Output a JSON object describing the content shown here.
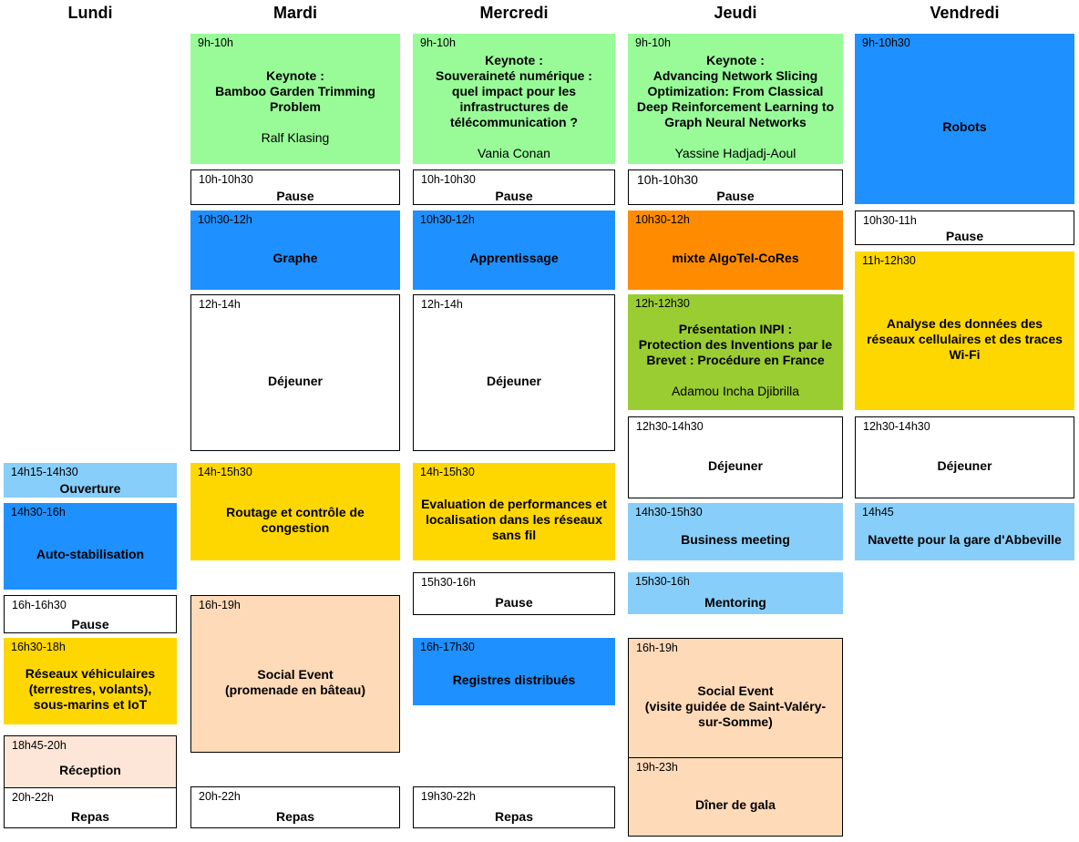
{
  "days": [
    "Lundi",
    "Mardi",
    "Mercredi",
    "Jeudi",
    "Vendredi"
  ],
  "events": {
    "lun_ouverture": {
      "time": "14h15-14h30",
      "title": "Ouverture"
    },
    "lun_autostab": {
      "time": "14h30-16h",
      "title": "Auto-stabilisation"
    },
    "lun_pause": {
      "time": "16h-16h30",
      "title": "Pause"
    },
    "lun_reseaux": {
      "time": "16h30-18h",
      "title": "Réseaux véhiculaires\n(terrestres, volants),\nsous-marins et IoT"
    },
    "lun_reception": {
      "time": "18h45-20h",
      "title": "Réception"
    },
    "lun_repas": {
      "time": "20h-22h",
      "title": "Repas"
    },
    "mar_keynote": {
      "time": "9h-10h",
      "title": "Keynote :\nBamboo Garden Trimming\nProblem",
      "speaker": "Ralf Klasing"
    },
    "mar_pause": {
      "time": "10h-10h30",
      "title": "Pause"
    },
    "mar_graphe": {
      "time": "10h30-12h",
      "title": "Graphe"
    },
    "mar_dej": {
      "time": "12h-14h",
      "title": "Déjeuner"
    },
    "mar_routage": {
      "time": "14h-15h30",
      "title": "Routage et contrôle de\ncongestion"
    },
    "mar_social": {
      "time": "16h-19h",
      "title": "Social Event\n(promenade en bâteau)"
    },
    "mar_repas": {
      "time": "20h-22h",
      "title": "Repas"
    },
    "mer_keynote": {
      "time": "9h-10h",
      "title": "Keynote :\nSouveraineté numérique :\nquel impact pour les\ninfrastructures de\ntélécommunication ?",
      "speaker": "Vania Conan"
    },
    "mer_pause": {
      "time": "10h-10h30",
      "title": "Pause"
    },
    "mer_apprentissage": {
      "time": "10h30-12h",
      "title": "Apprentissage"
    },
    "mer_dej": {
      "time": "12h-14h",
      "title": "Déjeuner"
    },
    "mer_eval": {
      "time": "14h-15h30",
      "title": "Evaluation de performances et\nlocalisation dans les réseaux\nsans fil"
    },
    "mer_pause2": {
      "time": "15h30-16h",
      "title": "Pause"
    },
    "mer_registres": {
      "time": "16h-17h30",
      "title": "Registres distribués"
    },
    "mer_repas": {
      "time": "19h30-22h",
      "title": "Repas"
    },
    "jeu_keynote": {
      "time": "9h-10h",
      "title": "Keynote :\nAdvancing Network Slicing\nOptimization: From Classical\nDeep Reinforcement Learning to\nGraph Neural Networks",
      "speaker": "Yassine Hadjadj-Aoul"
    },
    "jeu_pause": {
      "time": "10h-10h30",
      "title": "Pause"
    },
    "jeu_mixte": {
      "time": "10h30-12h",
      "title": "mixte AlgoTel-CoRes"
    },
    "jeu_inpi": {
      "time": "12h-12h30",
      "title": "Présentation INPI :\nProtection des Inventions par le\nBrevet : Procédure en France",
      "speaker": "Adamou Incha Djibrilla"
    },
    "jeu_dej": {
      "time": "12h30-14h30",
      "title": "Déjeuner"
    },
    "jeu_business": {
      "time": "14h30-15h30",
      "title": "Business meeting"
    },
    "jeu_mentoring": {
      "time": "15h30-16h",
      "title": "Mentoring"
    },
    "jeu_social": {
      "time": "16h-19h",
      "title": "Social Event\n(visite guidée de Saint-Valéry-\nsur-Somme)"
    },
    "jeu_gala": {
      "time": "19h-23h",
      "title": "Dîner de gala"
    },
    "ven_robots": {
      "time": "9h-10h30",
      "title": "Robots"
    },
    "ven_pause": {
      "time": "10h30-11h",
      "title": "Pause"
    },
    "ven_analyse": {
      "time": "11h-12h30",
      "title": "Analyse des données des\nréseaux cellulaires et des traces\nWi-Fi"
    },
    "ven_dej": {
      "time": "12h30-14h30",
      "title": "Déjeuner"
    },
    "ven_navette": {
      "time": "14h45",
      "title": "Navette pour la gare d'Abbeville"
    }
  }
}
